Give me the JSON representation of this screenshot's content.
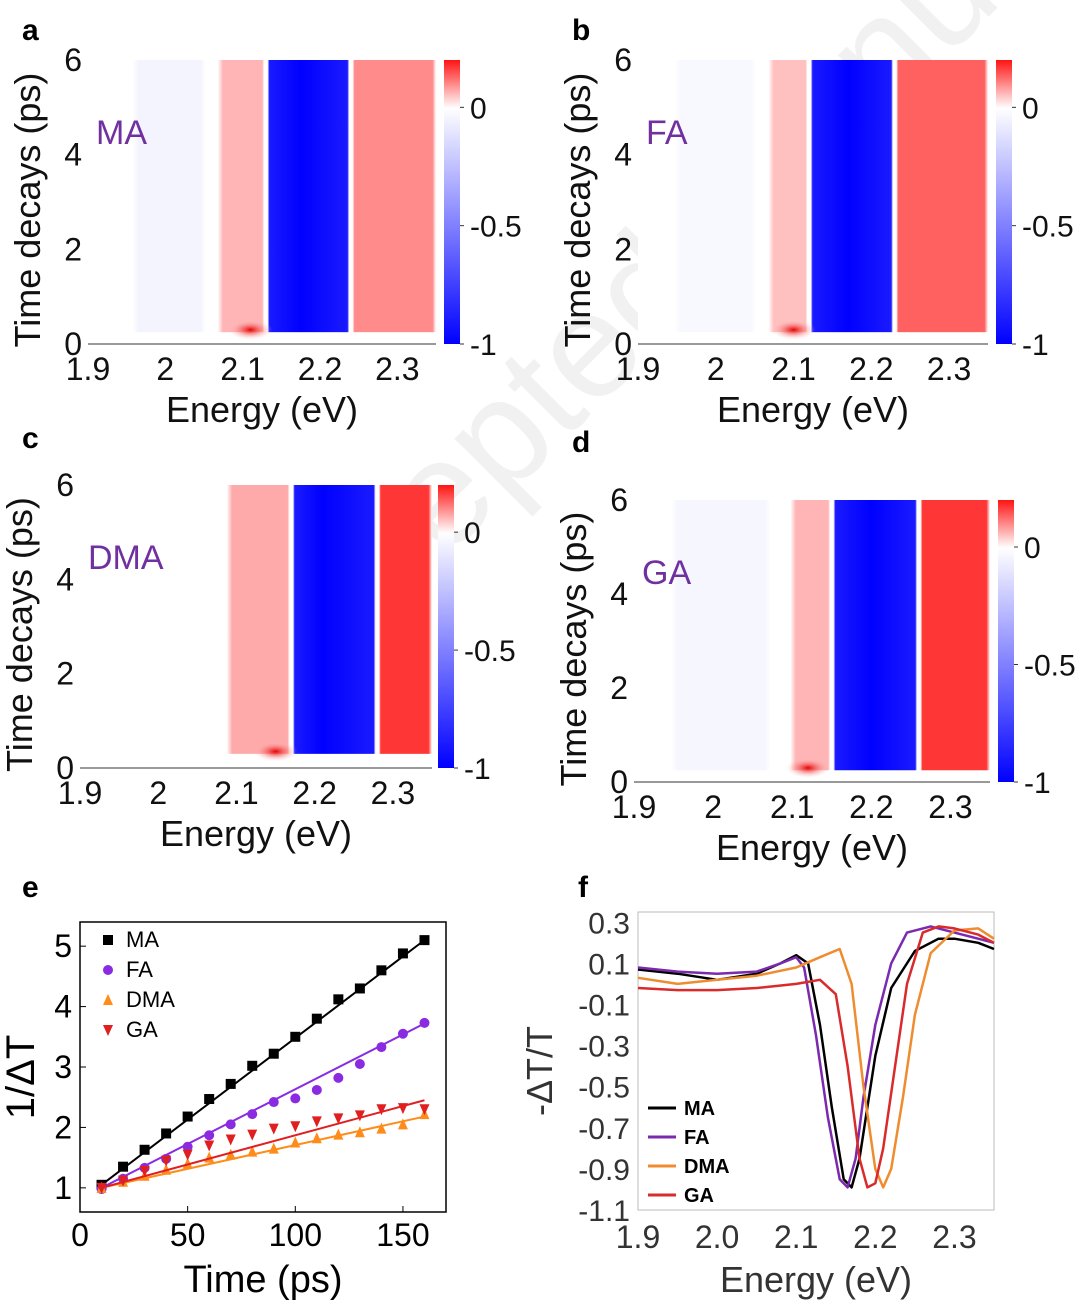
{
  "watermark": "Accepted Manuscript",
  "chart_data": [
    {
      "panel": "a",
      "type": "heatmap",
      "label": "MA",
      "xlabel": "Energy (eV)",
      "ylabel": "Time decays (ps)",
      "xlim": [
        1.9,
        2.35
      ],
      "ylim": [
        0,
        6
      ],
      "xticks": [
        "1.9",
        "2",
        "2.1",
        "2.2",
        "2.3"
      ],
      "yticks": [
        "0",
        "2",
        "4",
        "6"
      ],
      "colorbar": {
        "ticks": [
          "0",
          "-0.5",
          "-1"
        ],
        "range": [
          -1,
          0.2
        ]
      },
      "bands": [
        {
          "from": 1.96,
          "to": 2.05,
          "value": -0.05
        },
        {
          "from": 2.07,
          "to": 2.13,
          "value": 0.35
        },
        {
          "from": 2.13,
          "to": 2.24,
          "value": -1.0,
          "center": 2.175
        },
        {
          "from": 2.24,
          "to": 2.35,
          "value": 0.55
        }
      ],
      "early_peak": {
        "energy": 2.11,
        "time": 0.3
      },
      "rise_time": 0.25
    },
    {
      "panel": "b",
      "type": "heatmap",
      "label": "FA",
      "xlabel": "Energy (eV)",
      "ylabel": "Time decays (ps)",
      "xlim": [
        1.9,
        2.35
      ],
      "ylim": [
        0,
        6
      ],
      "xticks": [
        "1.9",
        "2",
        "2.1",
        "2.2",
        "2.3"
      ],
      "yticks": [
        "0",
        "2",
        "4",
        "6"
      ],
      "colorbar": {
        "ticks": [
          "0",
          "-0.5",
          "-1"
        ],
        "range": [
          -1,
          0.2
        ]
      },
      "bands": [
        {
          "from": 1.95,
          "to": 2.05,
          "value": -0.03
        },
        {
          "from": 2.07,
          "to": 2.12,
          "value": 0.3
        },
        {
          "from": 2.12,
          "to": 2.23,
          "value": -1.0,
          "center": 2.17
        },
        {
          "from": 2.23,
          "to": 2.35,
          "value": 0.75
        }
      ],
      "early_peak": {
        "energy": 2.1,
        "time": 0.3
      },
      "rise_time": 0.25
    },
    {
      "panel": "c",
      "type": "heatmap",
      "label": "DMA",
      "xlabel": "Energy (eV)",
      "ylabel": "Time decays (ps)",
      "xlim": [
        1.9,
        2.35
      ],
      "ylim": [
        0,
        6
      ],
      "xticks": [
        "1.9",
        "2",
        "2.1",
        "2.2",
        "2.3"
      ],
      "yticks": [
        "0",
        "2",
        "4",
        "6"
      ],
      "colorbar": {
        "ticks": [
          "0",
          "-0.5",
          "-1"
        ],
        "range": [
          -1,
          0.2
        ]
      },
      "bands": [
        {
          "from": 2.09,
          "to": 2.17,
          "value": 0.4
        },
        {
          "from": 2.17,
          "to": 2.28,
          "value": -1.0,
          "center": 2.21
        },
        {
          "from": 2.28,
          "to": 2.35,
          "value": 0.95
        }
      ],
      "early_peak": {
        "energy": 2.15,
        "time": 0.35
      },
      "rise_time": 0.3
    },
    {
      "panel": "d",
      "type": "heatmap",
      "label": "GA",
      "xlabel": "Energy (eV)",
      "ylabel": "Time decays (ps)",
      "xlim": [
        1.9,
        2.35
      ],
      "ylim": [
        0,
        6
      ],
      "xticks": [
        "1.9",
        "2",
        "2.1",
        "2.2",
        "2.3"
      ],
      "yticks": [
        "0",
        "2",
        "4",
        "6"
      ],
      "colorbar": {
        "ticks": [
          "0",
          "-0.5",
          "-1"
        ],
        "range": [
          -1,
          0.2
        ]
      },
      "bands": [
        {
          "from": 1.95,
          "to": 2.07,
          "value": -0.04
        },
        {
          "from": 2.1,
          "to": 2.15,
          "value": 0.35
        },
        {
          "from": 2.15,
          "to": 2.26,
          "value": -1.0,
          "center": 2.2
        },
        {
          "from": 2.26,
          "to": 2.35,
          "value": 0.95
        }
      ],
      "early_peak": {
        "energy": 2.12,
        "time": 0.3
      },
      "rise_time": 0.25
    },
    {
      "panel": "e",
      "type": "scatter",
      "xlabel": "Time (ps)",
      "ylabel": "1/ΔT",
      "xlim": [
        0,
        170
      ],
      "ylim": [
        0.6,
        5.4
      ],
      "xticks": [
        0,
        50,
        100,
        150
      ],
      "yticks": [
        1,
        2,
        3,
        4,
        5
      ],
      "legend_position": "top-left",
      "series": [
        {
          "name": "MA",
          "marker": "square",
          "color": "#000000",
          "x": [
            10,
            20,
            30,
            40,
            50,
            60,
            70,
            80,
            90,
            100,
            110,
            120,
            130,
            140,
            150,
            160
          ],
          "y": [
            1.05,
            1.35,
            1.63,
            1.9,
            2.18,
            2.47,
            2.72,
            3.02,
            3.22,
            3.5,
            3.8,
            4.12,
            4.3,
            4.6,
            4.88,
            5.1
          ],
          "fit": [
            [
              10,
              1.05
            ],
            [
              160,
              5.1
            ]
          ]
        },
        {
          "name": "FA",
          "marker": "circle",
          "color": "#8a2be2",
          "x": [
            10,
            20,
            30,
            40,
            50,
            60,
            70,
            80,
            90,
            100,
            110,
            120,
            130,
            140,
            150,
            160
          ],
          "y": [
            0.98,
            1.15,
            1.33,
            1.48,
            1.68,
            1.87,
            2.05,
            2.22,
            2.42,
            2.48,
            2.62,
            2.82,
            3.05,
            3.33,
            3.55,
            3.73
          ],
          "fit": [
            [
              10,
              1.0
            ],
            [
              160,
              3.72
            ]
          ]
        },
        {
          "name": "DMA",
          "marker": "triangle-up",
          "color": "#ff8c1a",
          "x": [
            10,
            20,
            30,
            40,
            50,
            60,
            70,
            80,
            90,
            100,
            110,
            120,
            130,
            140,
            150,
            160
          ],
          "y": [
            1.0,
            1.1,
            1.2,
            1.3,
            1.4,
            1.5,
            1.55,
            1.6,
            1.65,
            1.75,
            1.82,
            1.88,
            1.92,
            1.98,
            2.05,
            2.22
          ],
          "fit": [
            [
              10,
              1.0
            ],
            [
              160,
              2.18
            ]
          ]
        },
        {
          "name": "GA",
          "marker": "triangle-down",
          "color": "#e02020",
          "x": [
            10,
            20,
            30,
            40,
            50,
            60,
            70,
            80,
            90,
            100,
            110,
            120,
            130,
            140,
            150,
            160
          ],
          "y": [
            1.0,
            1.12,
            1.28,
            1.45,
            1.55,
            1.7,
            1.8,
            1.88,
            1.98,
            2.02,
            2.1,
            2.15,
            2.2,
            2.3,
            2.32,
            2.3
          ],
          "fit": [
            [
              10,
              1.0
            ],
            [
              160,
              2.45
            ]
          ]
        }
      ]
    },
    {
      "panel": "f",
      "type": "line",
      "xlabel": "Energy (eV)",
      "ylabel": "-ΔT/T",
      "xlim": [
        1.9,
        2.35
      ],
      "ylim": [
        -1.1,
        0.35
      ],
      "xticks": [
        "1.9",
        "2.0",
        "2.1",
        "2.2",
        "2.3"
      ],
      "yticks": [
        "0.3",
        "0.1",
        "-0.1",
        "-0.3",
        "-0.5",
        "-0.7",
        "-0.9",
        "-1.1"
      ],
      "grid": false,
      "legend_position": "bottom-left",
      "series": [
        {
          "name": "MA",
          "color": "#000000",
          "x": [
            1.9,
            1.95,
            2.0,
            2.05,
            2.08,
            2.1,
            2.115,
            2.13,
            2.145,
            2.16,
            2.17,
            2.18,
            2.19,
            2.2,
            2.22,
            2.25,
            2.28,
            2.3,
            2.33,
            2.35
          ],
          "y": [
            0.07,
            0.05,
            0.02,
            0.05,
            0.1,
            0.14,
            0.1,
            -0.2,
            -0.6,
            -0.95,
            -0.99,
            -0.85,
            -0.6,
            -0.35,
            -0.02,
            0.16,
            0.22,
            0.22,
            0.2,
            0.17
          ]
        },
        {
          "name": "FA",
          "color": "#7b2ab0",
          "x": [
            1.9,
            1.95,
            2.0,
            2.05,
            2.08,
            2.1,
            2.11,
            2.125,
            2.14,
            2.155,
            2.165,
            2.175,
            2.185,
            2.2,
            2.22,
            2.24,
            2.27,
            2.3,
            2.33,
            2.35
          ],
          "y": [
            0.08,
            0.06,
            0.05,
            0.06,
            0.1,
            0.13,
            0.08,
            -0.25,
            -0.65,
            -0.95,
            -0.99,
            -0.85,
            -0.55,
            -0.2,
            0.1,
            0.25,
            0.28,
            0.25,
            0.22,
            0.2
          ]
        },
        {
          "name": "DMA",
          "color": "#f08c30",
          "x": [
            1.9,
            1.95,
            2.0,
            2.05,
            2.1,
            2.13,
            2.155,
            2.17,
            2.185,
            2.2,
            2.21,
            2.22,
            2.235,
            2.25,
            2.27,
            2.3,
            2.33,
            2.35
          ],
          "y": [
            0.03,
            0.0,
            0.02,
            0.04,
            0.08,
            0.13,
            0.17,
            0.0,
            -0.5,
            -0.9,
            -0.99,
            -0.9,
            -0.55,
            -0.15,
            0.15,
            0.26,
            0.27,
            0.22
          ]
        },
        {
          "name": "GA",
          "color": "#d92b2b",
          "x": [
            1.9,
            1.95,
            2.0,
            2.05,
            2.1,
            2.13,
            2.15,
            2.165,
            2.18,
            2.19,
            2.2,
            2.21,
            2.225,
            2.24,
            2.26,
            2.28,
            2.3,
            2.33,
            2.35
          ],
          "y": [
            -0.02,
            -0.03,
            -0.03,
            -0.02,
            0.0,
            0.02,
            -0.05,
            -0.4,
            -0.85,
            -0.99,
            -0.97,
            -0.8,
            -0.4,
            0.0,
            0.25,
            0.28,
            0.27,
            0.24,
            0.2
          ]
        }
      ]
    }
  ]
}
